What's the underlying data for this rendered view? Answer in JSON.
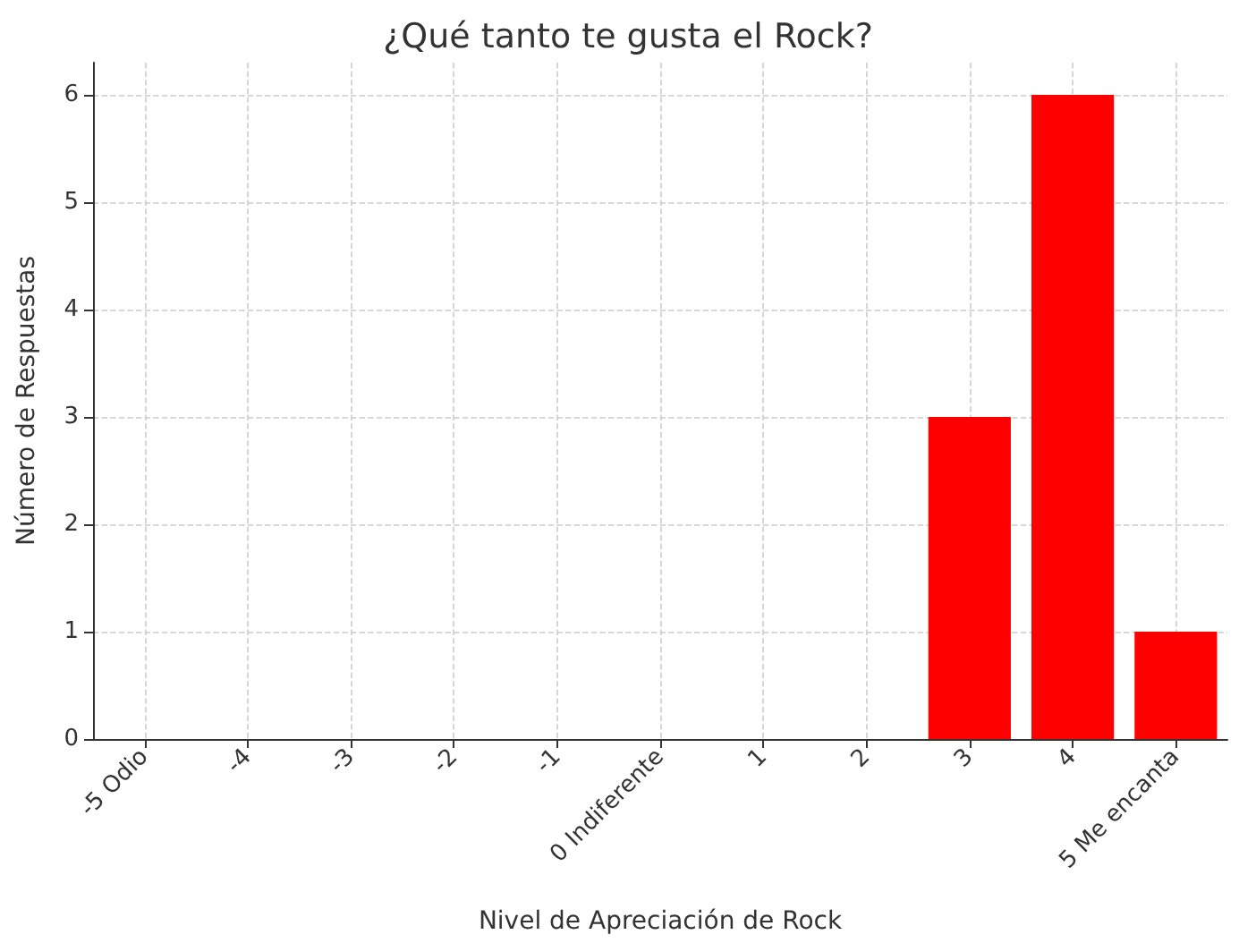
{
  "chart_data": {
    "type": "bar",
    "title": "¿Qué tanto te gusta el Rock?",
    "xlabel": "Nivel de Apreciación de Rock",
    "ylabel": "Número de Respuestas",
    "categories": [
      "-5 Odio",
      "-4",
      "-3",
      "-2",
      "-1",
      "0 Indiferente",
      "1",
      "2",
      "3",
      "4",
      "5 Me encanta"
    ],
    "values": [
      0,
      0,
      0,
      0,
      0,
      0,
      0,
      0,
      3,
      6,
      1
    ],
    "color": "#ff0000",
    "ylim": [
      0,
      6.3
    ],
    "yticks": [
      0,
      1,
      2,
      3,
      4,
      5,
      6
    ],
    "grid": true
  }
}
